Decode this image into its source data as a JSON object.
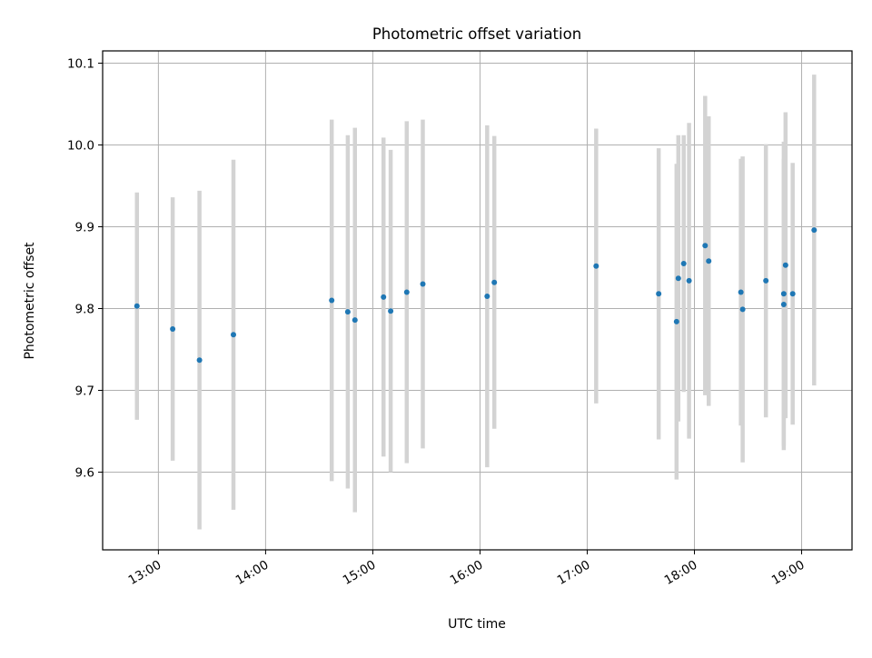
{
  "chart_data": {
    "type": "scatter",
    "title": "Photometric offset variation",
    "xlabel": "UTC time",
    "ylabel": "Photometric offset",
    "xlim_hours": [
      12.48,
      19.47
    ],
    "ylim": [
      9.505,
      10.115
    ],
    "x_ticks": [
      {
        "hour": 13,
        "label": "13:00"
      },
      {
        "hour": 14,
        "label": "14:00"
      },
      {
        "hour": 15,
        "label": "15:00"
      },
      {
        "hour": 16,
        "label": "16:00"
      },
      {
        "hour": 17,
        "label": "17:00"
      },
      {
        "hour": 18,
        "label": "18:00"
      },
      {
        "hour": 19,
        "label": "19:00"
      }
    ],
    "y_ticks": [
      {
        "value": 9.6,
        "label": "9.6"
      },
      {
        "value": 9.7,
        "label": "9.7"
      },
      {
        "value": 9.8,
        "label": "9.8"
      },
      {
        "value": 9.9,
        "label": "9.9"
      },
      {
        "value": 10.0,
        "label": "10.0"
      },
      {
        "value": 10.1,
        "label": "10.1"
      }
    ],
    "grid": true,
    "colors": {
      "point": "#1f77b4",
      "errorbar": "#d3d3d3",
      "grid": "#b0b0b0"
    },
    "points": [
      {
        "time": "12:48",
        "y": 9.803,
        "err": 0.139
      },
      {
        "time": "13:08",
        "y": 9.775,
        "err": 0.161
      },
      {
        "time": "13:23",
        "y": 9.737,
        "err": 0.207
      },
      {
        "time": "13:42",
        "y": 9.768,
        "err": 0.214
      },
      {
        "time": "14:37",
        "y": 9.81,
        "err": 0.221
      },
      {
        "time": "14:46",
        "y": 9.796,
        "err": 0.216
      },
      {
        "time": "14:50",
        "y": 9.786,
        "err": 0.235
      },
      {
        "time": "15:06",
        "y": 9.814,
        "err": 0.195
      },
      {
        "time": "15:10",
        "y": 9.797,
        "err": 0.197
      },
      {
        "time": "15:19",
        "y": 9.82,
        "err": 0.209
      },
      {
        "time": "15:28",
        "y": 9.83,
        "err": 0.201
      },
      {
        "time": "16:04",
        "y": 9.815,
        "err": 0.209
      },
      {
        "time": "16:08",
        "y": 9.832,
        "err": 0.179
      },
      {
        "time": "17:05",
        "y": 9.852,
        "err": 0.168
      },
      {
        "time": "17:40",
        "y": 9.818,
        "err": 0.178
      },
      {
        "time": "17:50",
        "y": 9.784,
        "err": 0.193
      },
      {
        "time": "17:51",
        "y": 9.837,
        "err": 0.175
      },
      {
        "time": "17:54",
        "y": 9.855,
        "err": 0.157
      },
      {
        "time": "17:57",
        "y": 9.834,
        "err": 0.193
      },
      {
        "time": "18:06",
        "y": 9.877,
        "err": 0.183
      },
      {
        "time": "18:08",
        "y": 9.858,
        "err": 0.177
      },
      {
        "time": "18:26",
        "y": 9.82,
        "err": 0.163
      },
      {
        "time": "18:27",
        "y": 9.799,
        "err": 0.187
      },
      {
        "time": "18:40",
        "y": 9.834,
        "err": 0.167
      },
      {
        "time": "18:50",
        "y": 9.805,
        "err": 0.178
      },
      {
        "time": "18:50",
        "y": 9.818,
        "err": 0.186
      },
      {
        "time": "18:51",
        "y": 9.853,
        "err": 0.187
      },
      {
        "time": "18:55",
        "y": 9.818,
        "err": 0.16
      },
      {
        "time": "19:07",
        "y": 9.896,
        "err": 0.19
      }
    ]
  }
}
